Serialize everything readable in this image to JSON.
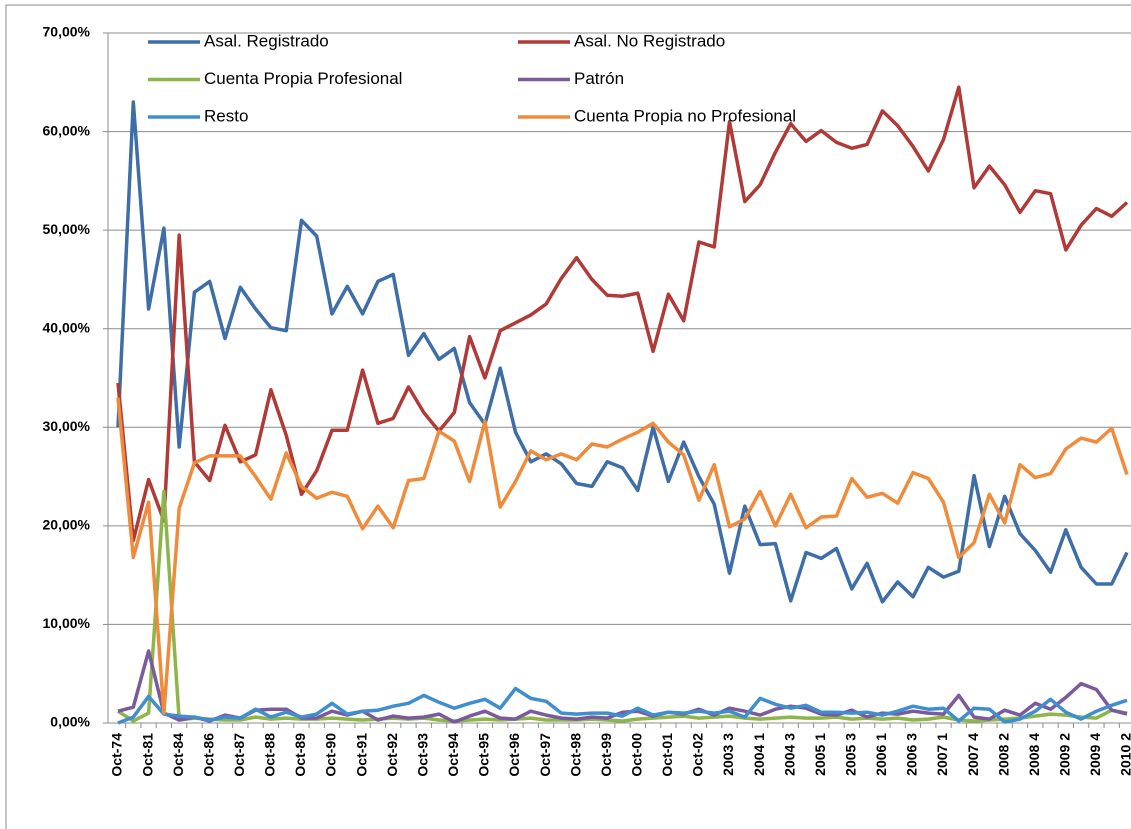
{
  "chart_data": {
    "type": "line",
    "categories": [
      "Oct-74",
      null,
      "Oct-81",
      null,
      "Oct-84",
      null,
      "Oct-86",
      null,
      "Oct-87",
      null,
      "Oct-88",
      null,
      "Oct-89",
      null,
      "Oct-90",
      null,
      "Oct-91",
      null,
      "Oct-92",
      null,
      "Oct-93",
      null,
      "Oct-94",
      null,
      "Oct-95",
      null,
      "Oct-96",
      null,
      "Oct-97",
      null,
      "Oct-98",
      null,
      "Oct-99",
      null,
      "Oct-00",
      null,
      "Oct-01",
      null,
      "Oct-02",
      null,
      "2003 3",
      null,
      "2004 1",
      null,
      "2004 3",
      null,
      "2005 1",
      null,
      "2005 3",
      null,
      "2006 1",
      null,
      "2006 3",
      null,
      "2007 1",
      null,
      "2007 4",
      null,
      "2008 2",
      null,
      "2008 4",
      null,
      "2009 2",
      null,
      "2009 4",
      null,
      "2010 2"
    ],
    "series": [
      {
        "name": "Asal. Registrado",
        "color": "#3e6ea8",
        "values": [
          30,
          63,
          42,
          50.2,
          28,
          43.7,
          44.8,
          39,
          44.2,
          42,
          40.1,
          39.8,
          51,
          49.4,
          41.5,
          44.3,
          41.5,
          44.8,
          45.5,
          37.3,
          39.5,
          36.9,
          38,
          32.5,
          30.3,
          36,
          29.5,
          26.5,
          27.3,
          26.3,
          24.3,
          24,
          26.5,
          25.9,
          23.6,
          30,
          24.5,
          28.5,
          25,
          22.2,
          15.2,
          22,
          18.1,
          18.2,
          12.4,
          17.3,
          16.7,
          17.7,
          13.6,
          16.2,
          12.3,
          14.3,
          12.8,
          15.8,
          14.8,
          15.4,
          25.1,
          17.9,
          23,
          19.2,
          17.5,
          15.3,
          19.6,
          15.8,
          14.1,
          14.1,
          17.3
        ]
      },
      {
        "name": "Asal. No Registrado",
        "color": "#b03a37",
        "values": [
          34.5,
          18.5,
          24.7,
          20.5,
          49.5,
          26.5,
          24.6,
          30.2,
          26.5,
          27.2,
          33.8,
          29.2,
          23.2,
          25.6,
          29.7,
          29.7,
          35.8,
          30.4,
          30.9,
          34.1,
          31.5,
          29.6,
          31.5,
          39.2,
          35,
          39.8,
          40.6,
          41.4,
          42.5,
          45.1,
          47.2,
          45,
          43.4,
          43.3,
          43.6,
          37.7,
          43.5,
          40.8,
          48.8,
          48.3,
          61,
          52.9,
          54.6,
          57.9,
          60.8,
          59,
          60.1,
          58.9,
          58.3,
          58.7,
          62.1,
          60.6,
          58.5,
          56,
          59.2,
          64.5,
          54.3,
          56.5,
          54.6,
          51.8,
          54,
          53.7,
          48,
          50.5,
          52.2,
          51.4,
          52.8
        ]
      },
      {
        "name": "Cuenta Propia Profesional",
        "color": "#8db54a",
        "values": [
          1.2,
          0.2,
          1,
          23.5,
          0.3,
          0.5,
          0.4,
          0.3,
          0.3,
          0.6,
          0.4,
          0.5,
          0.4,
          0.4,
          0.5,
          0.4,
          0.3,
          0.4,
          0.5,
          0.4,
          0.5,
          0.3,
          0.2,
          0.3,
          0.4,
          0.3,
          0.4,
          0.5,
          0.3,
          0.3,
          0.3,
          0.4,
          0.3,
          0.2,
          0.4,
          0.5,
          0.6,
          0.7,
          0.5,
          0.6,
          0.7,
          0.5,
          0.4,
          0.5,
          0.6,
          0.5,
          0.5,
          0.6,
          0.4,
          0.5,
          0.4,
          0.5,
          0.3,
          0.4,
          0.6,
          0.3,
          0.2,
          0.3,
          0.4,
          0.5,
          0.7,
          0.9,
          0.8,
          0.6,
          0.5,
          1.3,
          1.0
        ]
      },
      {
        "name": "Patrón",
        "color": "#7a5a9c",
        "values": [
          1.2,
          1.6,
          7.3,
          1,
          0.3,
          0.6,
          0.2,
          0.8,
          0.5,
          1.3,
          1.4,
          1.4,
          0.5,
          0.5,
          1.2,
          0.8,
          1.2,
          0.3,
          0.7,
          0.5,
          0.6,
          0.9,
          0.1,
          0.7,
          1.2,
          0.5,
          0.4,
          1.2,
          0.8,
          0.5,
          0.4,
          0.6,
          0.5,
          1.1,
          1.2,
          0.7,
          1.1,
          0.9,
          1.4,
          0.8,
          1.5,
          1.2,
          0.8,
          1.4,
          1.7,
          1.5,
          0.9,
          0.8,
          1.3,
          0.6,
          1,
          0.9,
          1.2,
          1,
          0.9,
          2.8,
          0.6,
          0.4,
          1.3,
          0.8,
          2,
          1.4,
          2.6,
          4,
          3.4,
          1.3,
          0.9
        ]
      },
      {
        "name": "Resto",
        "color": "#3f8ed0",
        "values": [
          0,
          0.6,
          2.7,
          0.9,
          0.7,
          0.6,
          0.3,
          0.6,
          0.5,
          1.4,
          0.6,
          1.1,
          0.6,
          0.9,
          2,
          0.9,
          1.2,
          1.3,
          1.7,
          2,
          2.8,
          2.1,
          1.5,
          2,
          2.4,
          1.5,
          3.5,
          2.5,
          2.2,
          1,
          0.9,
          1,
          1,
          0.7,
          1.5,
          0.8,
          1.1,
          1,
          1.2,
          1,
          1.2,
          0.6,
          2.5,
          1.9,
          1.5,
          1.8,
          1.1,
          1.1,
          1,
          1.1,
          0.8,
          1.2,
          1.7,
          1.4,
          1.5,
          0.2,
          1.5,
          1.4,
          0.1,
          0.4,
          1.2,
          2.4,
          1.1,
          0.4,
          1.2,
          1.8,
          2.3
        ]
      },
      {
        "name": "Cuenta Propia no Profesional",
        "color": "#ef8b3a",
        "values": [
          33,
          16.8,
          22.4,
          1,
          21.8,
          26.4,
          27.1,
          27.1,
          27.1,
          25,
          22.7,
          27.4,
          24,
          22.8,
          23.4,
          23,
          19.7,
          22,
          19.8,
          24.6,
          24.8,
          29.6,
          28.6,
          24.5,
          30.6,
          21.9,
          24.5,
          27.6,
          26.7,
          27.3,
          26.7,
          28.3,
          28,
          28.8,
          29.5,
          30.4,
          28.5,
          27.2,
          22.6,
          26.2,
          19.9,
          20.7,
          23.5,
          20,
          23.2,
          19.8,
          20.9,
          21,
          24.8,
          22.9,
          23.3,
          22.3,
          25.4,
          24.8,
          22.4,
          16.8,
          18.3,
          23.2,
          20.3,
          26.2,
          24.9,
          25.3,
          27.8,
          28.9,
          28.5,
          29.9,
          25.2
        ]
      }
    ],
    "ylim": [
      0,
      70
    ],
    "yticks": [
      {
        "value": 0,
        "label": "0,00%"
      },
      {
        "value": 10,
        "label": "10,00%"
      },
      {
        "value": 20,
        "label": "20,00%"
      },
      {
        "value": 30,
        "label": "30,00%"
      },
      {
        "value": 40,
        "label": "40,00%"
      },
      {
        "value": 50,
        "label": "50,00%"
      },
      {
        "value": 60,
        "label": "60,00%"
      },
      {
        "value": 70,
        "label": "70,00%"
      }
    ],
    "grid": true,
    "legend": "top"
  }
}
